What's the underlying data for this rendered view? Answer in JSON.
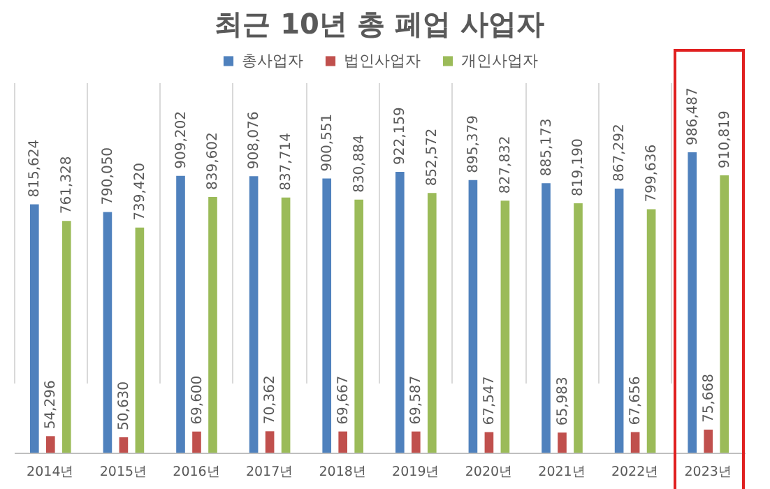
{
  "chart_data": {
    "type": "bar",
    "title": "최근 10년 총 폐업 사업자",
    "categories": [
      "2014년",
      "2015년",
      "2016년",
      "2017년",
      "2018년",
      "2019년",
      "2020년",
      "2021년",
      "2022년",
      "2023년"
    ],
    "series": [
      {
        "name": "총사업자",
        "color": "#4f81bd",
        "values": [
          815624,
          790050,
          909202,
          908076,
          900551,
          922159,
          895379,
          885173,
          867292,
          986487
        ],
        "value_labels": [
          "815,624",
          "790,050",
          "909,202",
          "908,076",
          "900,551",
          "922,159",
          "895,379",
          "885,173",
          "867,292",
          "986,487"
        ]
      },
      {
        "name": "법인사업자",
        "color": "#c0504d",
        "values": [
          54296,
          50630,
          69600,
          70362,
          69667,
          69587,
          67547,
          65983,
          67656,
          75668
        ],
        "value_labels": [
          "54,296",
          "50,630",
          "69,600",
          "70,362",
          "69,667",
          "69,587",
          "67,547",
          "65,983",
          "67,656",
          "75,668"
        ]
      },
      {
        "name": "개인사업자",
        "color": "#9bbb59",
        "values": [
          761328,
          739420,
          839602,
          837714,
          830884,
          852572,
          827832,
          819190,
          799636,
          910819
        ],
        "value_labels": [
          "761,328",
          "739,420",
          "839,602",
          "837,714",
          "830,884",
          "852,572",
          "827,832",
          "819,190",
          "799,636",
          "910,819"
        ]
      }
    ],
    "grid": "x",
    "legend": "top"
  }
}
